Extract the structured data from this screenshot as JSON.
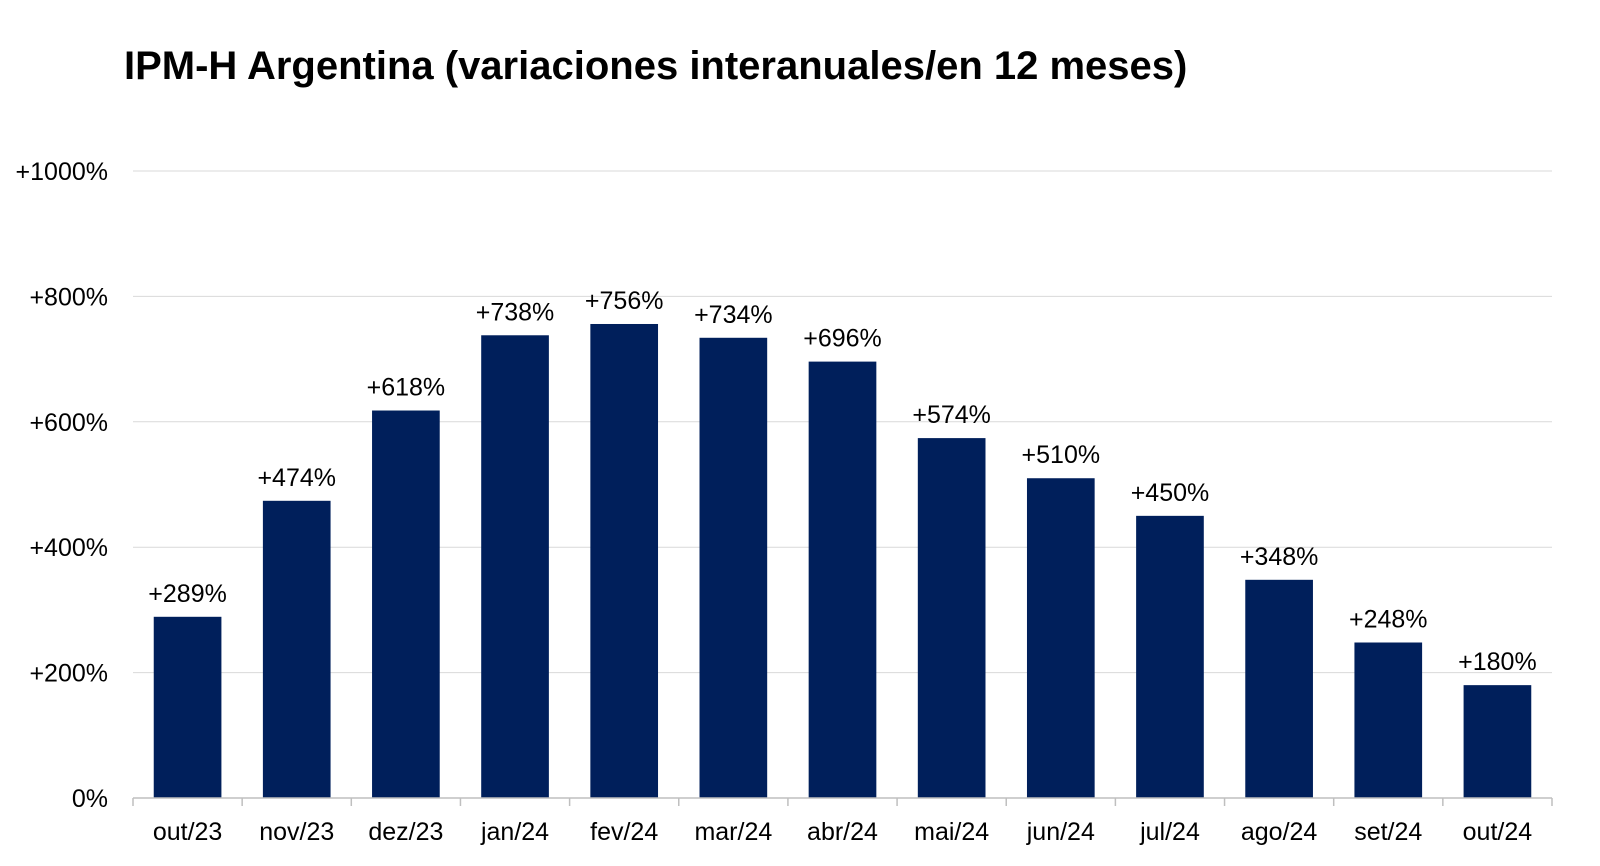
{
  "chart_data": {
    "type": "bar",
    "title": "IPM-H Argentina (variaciones interanuales/en 12 meses)",
    "xlabel": "",
    "ylabel": "",
    "categories": [
      "out/23",
      "nov/23",
      "dez/23",
      "jan/24",
      "fev/24",
      "mar/24",
      "abr/24",
      "mai/24",
      "jun/24",
      "jul/24",
      "ago/24",
      "set/24",
      "out/24"
    ],
    "values": [
      289,
      474,
      618,
      738,
      756,
      734,
      696,
      574,
      510,
      450,
      348,
      248,
      180
    ],
    "data_labels": [
      "+289%",
      "+474%",
      "+618%",
      "+738%",
      "+756%",
      "+734%",
      "+696%",
      "+574%",
      "+510%",
      "+450%",
      "+348%",
      "+248%",
      "+180%"
    ],
    "ylim": [
      0,
      1000
    ],
    "yticks": [
      0,
      200,
      400,
      600,
      800,
      1000
    ],
    "ytick_labels": [
      "0%",
      "+200%",
      "+400%",
      "+600%",
      "+800%",
      "+1000%"
    ],
    "grid": true,
    "legend": "none",
    "bar_color": "#001f5b",
    "grid_color": "#d9d9d9",
    "axis_color": "#bfbfbf"
  }
}
